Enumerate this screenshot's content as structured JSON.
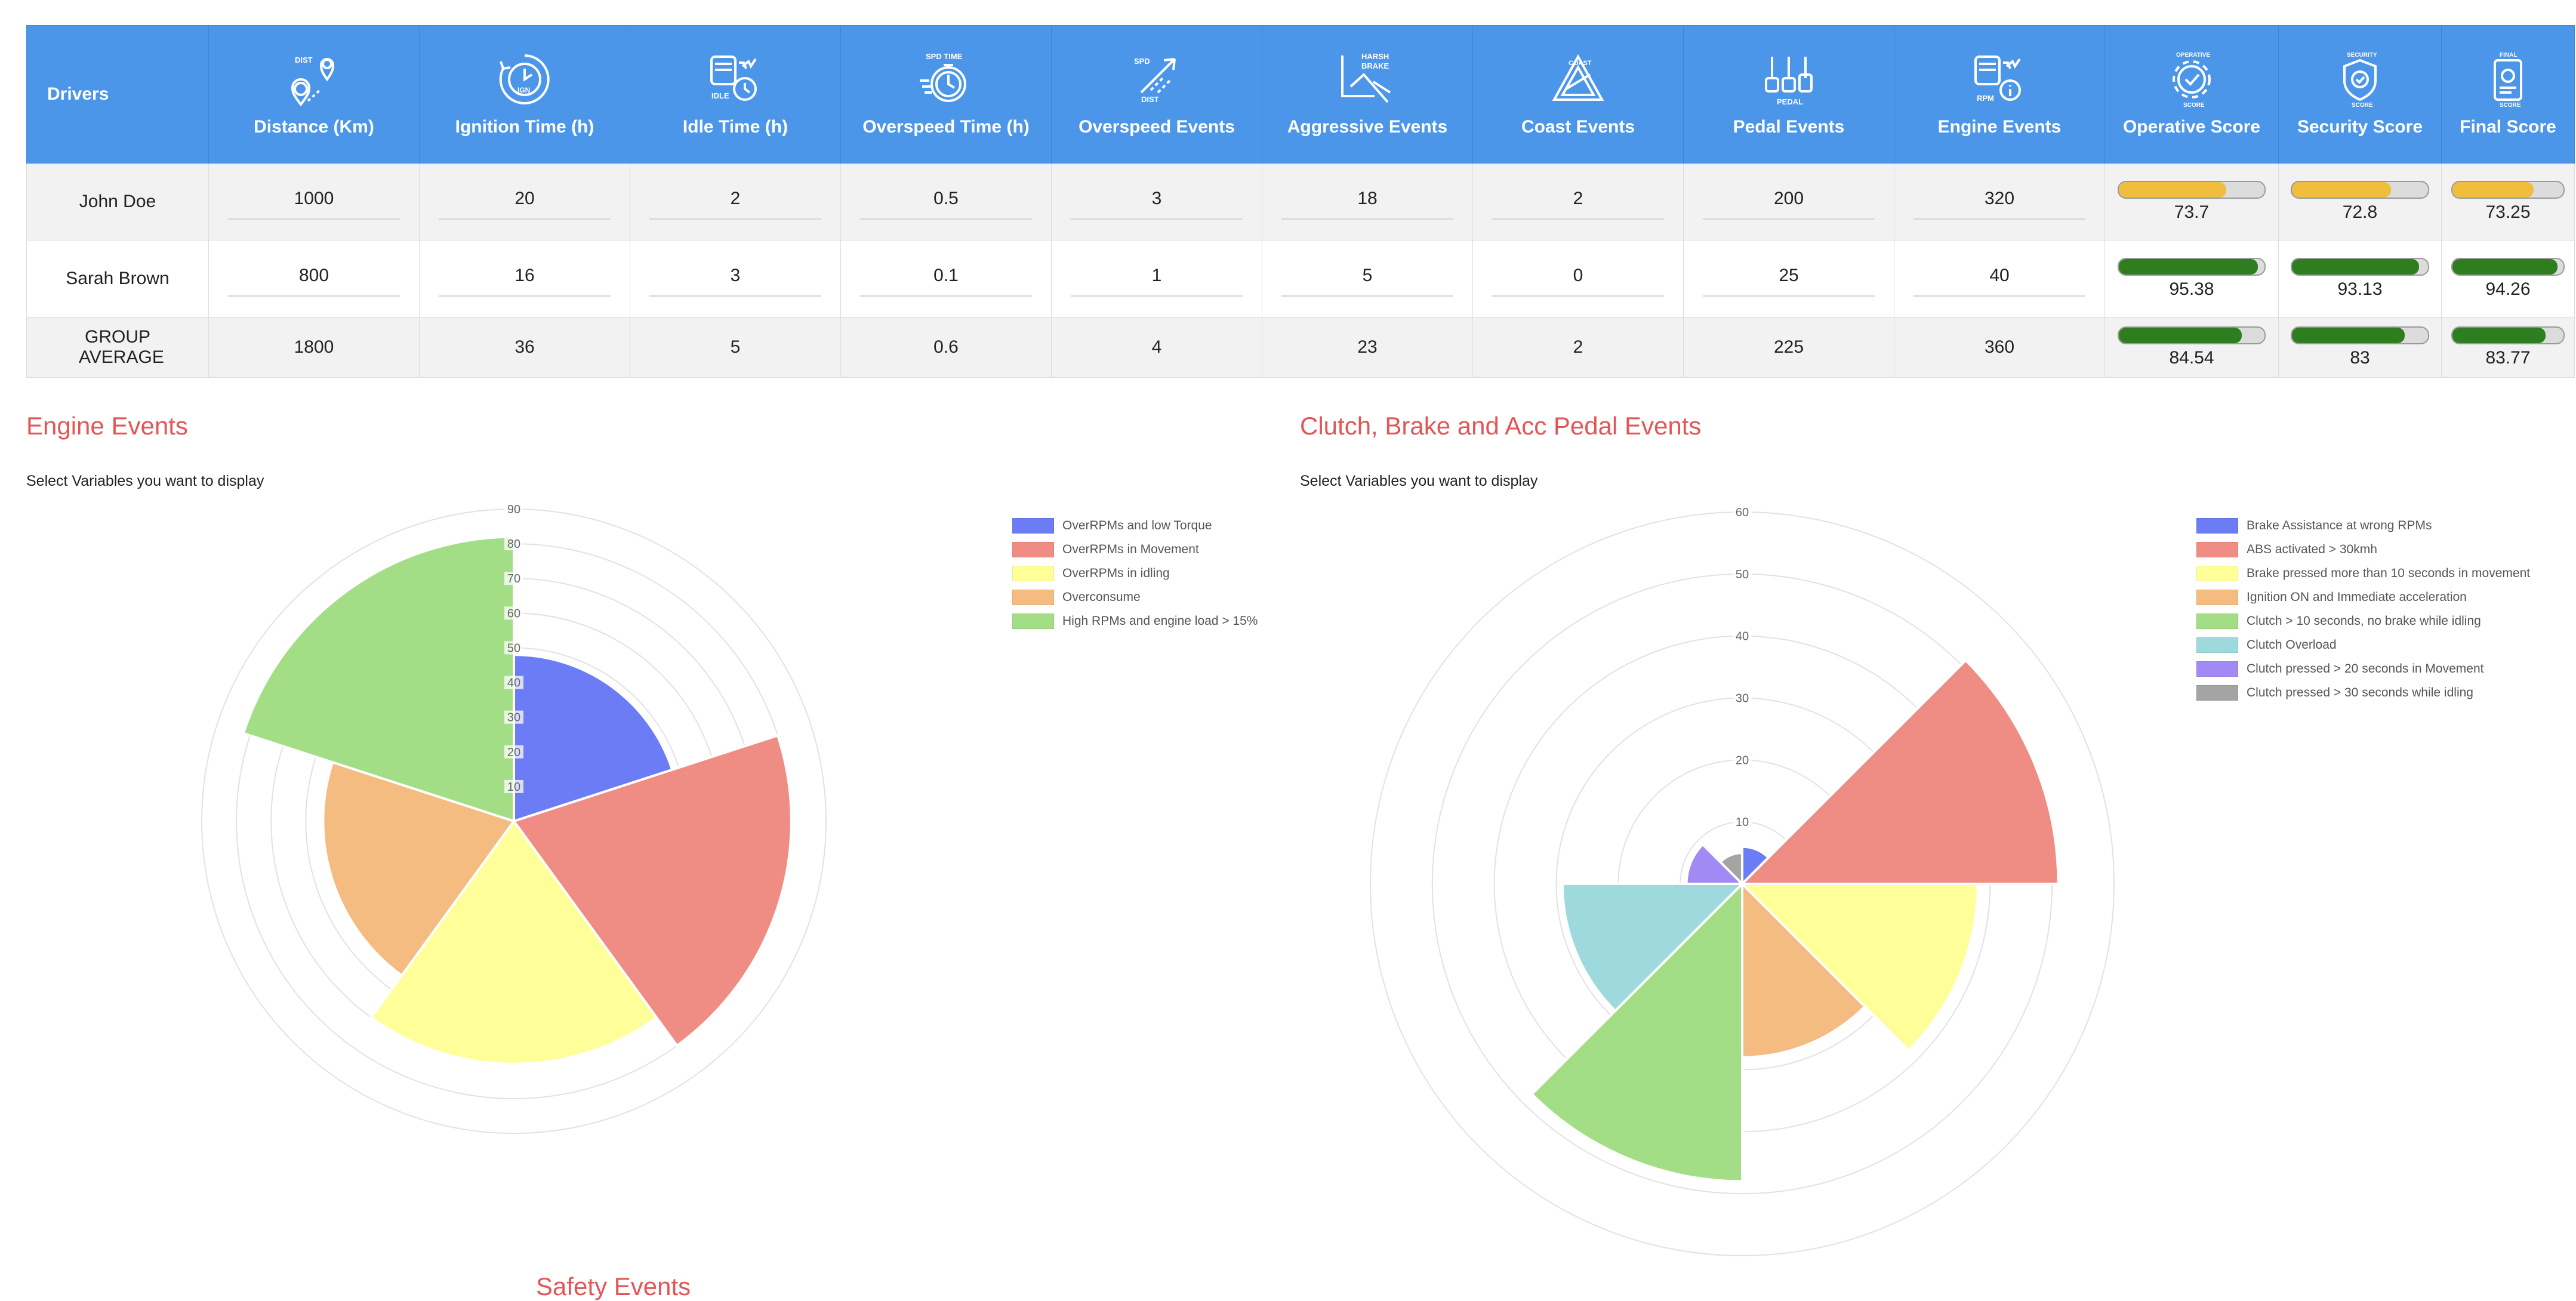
{
  "table": {
    "headers": [
      {
        "key": "drivers",
        "label": "Drivers",
        "icon": "none"
      },
      {
        "key": "distance",
        "label": "Distance (Km)",
        "icon": "distance-icon"
      },
      {
        "key": "ignition",
        "label": "Ignition Time (h)",
        "icon": "ignition-timer-icon"
      },
      {
        "key": "idle",
        "label": "Idle Time (h)",
        "icon": "idle-truck-icon"
      },
      {
        "key": "overspeed_time",
        "label": "Overspeed Time (h)",
        "icon": "stopwatch-icon"
      },
      {
        "key": "overspeed_events",
        "label": "Overspeed Events",
        "icon": "speed-arrow-icon"
      },
      {
        "key": "aggressive",
        "label": "Aggressive Events",
        "icon": "harsh-brake-icon"
      },
      {
        "key": "coast",
        "label": "Coast Events",
        "icon": "coast-triangle-icon"
      },
      {
        "key": "pedal",
        "label": "Pedal Events",
        "icon": "pedals-icon"
      },
      {
        "key": "engine",
        "label": "Engine Events",
        "icon": "rpm-truck-icon"
      },
      {
        "key": "operative",
        "label": "Operative Score",
        "icon": "gear-check-icon"
      },
      {
        "key": "security",
        "label": "Security Score",
        "icon": "shield-check-icon"
      },
      {
        "key": "final",
        "label": "Final Score",
        "icon": "final-score-doc-icon"
      }
    ],
    "icon_texts": {
      "distance": "DIST",
      "ignition": "IGN",
      "idle": "IDLE",
      "overspeed_time": "SPD TIME",
      "overspeed_events_a": "SPD",
      "overspeed_events_b": "DIST",
      "aggressive_a": "HARSH",
      "aggressive_b": "BRAKE",
      "coast": "COAST",
      "pedal": "PEDAL",
      "engine": "RPM",
      "operative": "OPERATIVE",
      "operative_b": "SCORE",
      "security": "SECURITY",
      "security_b": "SCORE",
      "final": "FINAL",
      "final_b": "SCORE"
    },
    "rows": [
      {
        "driver": "John Doe",
        "distance": "1000",
        "ignition": "20",
        "idle": "2",
        "overspeed_time": "0.5",
        "overspeed_events": "3",
        "aggressive": "18",
        "coast": "2",
        "pedal": "200",
        "engine": "320",
        "operative": "73.7",
        "operative_pct": 73.7,
        "security": "72.8",
        "security_pct": 72.8,
        "final": "73.25",
        "final_pct": 73.25,
        "color": "#f0be3c"
      },
      {
        "driver": "Sarah Brown",
        "distance": "800",
        "ignition": "16",
        "idle": "3",
        "overspeed_time": "0.1",
        "overspeed_events": "1",
        "aggressive": "5",
        "coast": "0",
        "pedal": "25",
        "engine": "40",
        "operative": "95.38",
        "operative_pct": 95.38,
        "security": "93.13",
        "security_pct": 93.13,
        "final": "94.26",
        "final_pct": 94.26,
        "color": "#2e7d1f"
      },
      {
        "driver": "GROUP AVERAGE",
        "distance": "1800",
        "ignition": "36",
        "idle": "5",
        "overspeed_time": "0.6",
        "overspeed_events": "4",
        "aggressive": "23",
        "coast": "2",
        "pedal": "225",
        "engine": "360",
        "operative": "84.54",
        "operative_pct": 84.54,
        "security": "83",
        "security_pct": 83,
        "final": "83.77",
        "final_pct": 83.77,
        "color": "#2e7d1f"
      }
    ]
  },
  "engine_section": {
    "title": "Engine Events",
    "subtitle": "Select Variables you want to display"
  },
  "pedal_section": {
    "title": "Clutch, Brake and Acc Pedal Events",
    "subtitle": "Select Variables you want to display"
  },
  "safety_section": {
    "title": "Safety Events"
  },
  "chart_data": [
    {
      "type": "polarArea",
      "r_ticks": [
        "10",
        "20",
        "30",
        "40",
        "50",
        "60",
        "70",
        "80",
        "90"
      ],
      "r_max": 90,
      "categories": [
        "OverRPMs and low Torque",
        "OverRPMs in Movement",
        "OverRPMs in idling",
        "Overconsume",
        "High RPMs and engine load > 15%"
      ],
      "values": [
        48,
        80,
        70,
        55,
        82
      ],
      "colors": [
        "#6b7cf5",
        "#ef8c84",
        "#ffff99",
        "#f5bc82",
        "#a3dd86"
      ],
      "legend_position": "top-right",
      "grid": true
    },
    {
      "type": "polarArea",
      "r_ticks": [
        "10",
        "20",
        "30",
        "40",
        "50",
        "60"
      ],
      "r_max": 60,
      "categories": [
        "Brake Assistance at wrong RPMs",
        "ABS activated > 30kmh",
        "Brake pressed more than 10 seconds in movement",
        "Ignition ON and Immediate acceleration",
        "Clutch > 10 seconds, no brake while idling",
        "Clutch Overload",
        "Clutch pressed > 20 seconds in Movement",
        "Clutch pressed > 30 seconds while idling"
      ],
      "values": [
        6,
        51,
        38,
        28,
        48,
        29,
        9,
        5
      ],
      "colors": [
        "#6b7cf5",
        "#ef8c84",
        "#ffff99",
        "#f5bc82",
        "#a3dd86",
        "#9dd9dd",
        "#a28af5",
        "#a4a4a4"
      ],
      "legend_position": "top-right",
      "grid": true
    }
  ]
}
